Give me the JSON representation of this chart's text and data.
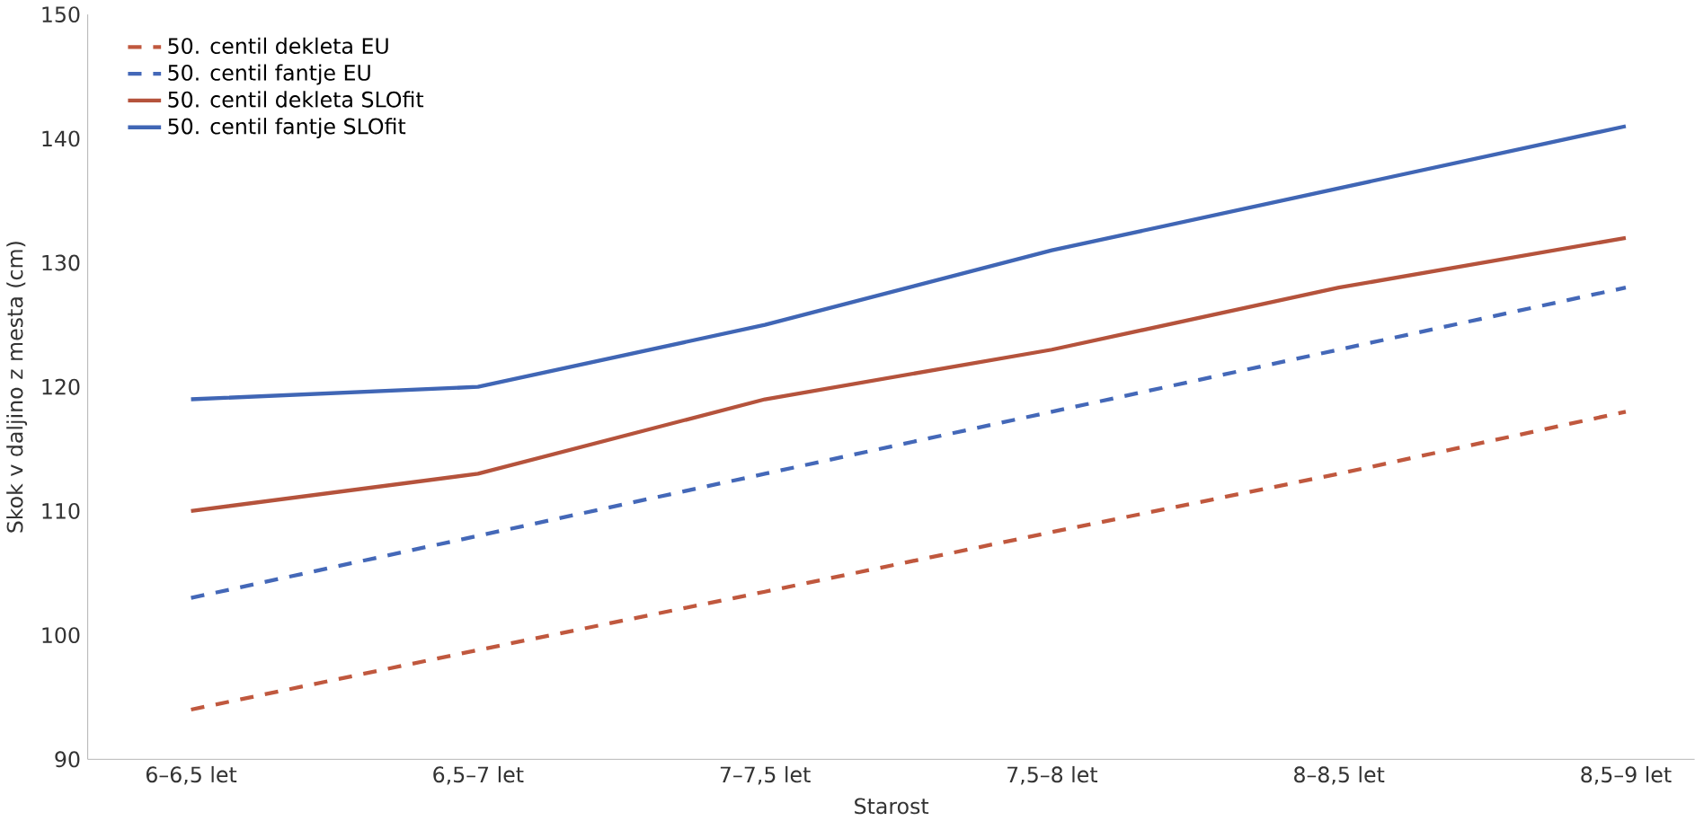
{
  "chart_data": {
    "type": "line",
    "xlabel": "Starost",
    "ylabel": "Skok v daljino z mesta (cm)",
    "categories": [
      "6–6,5 let",
      "6,5–7 let",
      "7–7,5 let",
      "7,5–8 let",
      "8–8,5 let",
      "8,5–9 let"
    ],
    "series": [
      {
        "name": "50. centil dekleta EU",
        "color": "#c0583e",
        "line_style": "dashed",
        "values": [
          94,
          98.8,
          103.5,
          108.3,
          113,
          118
        ]
      },
      {
        "name": "50. centil fantje EU",
        "color": "#4468b8",
        "line_style": "dashed",
        "values": [
          103,
          108,
          113,
          118,
          123,
          128
        ]
      },
      {
        "name": "50. centil dekleta SLOfit",
        "color": "#b5533c",
        "line_style": "solid",
        "values": [
          110,
          113,
          119,
          123,
          128,
          132
        ]
      },
      {
        "name": "50. centil fantje SLOfit",
        "color": "#4066b5",
        "line_style": "solid",
        "values": [
          119,
          120,
          125,
          131,
          136,
          141
        ]
      }
    ],
    "ylim": [
      90,
      150
    ],
    "yticks": [
      90,
      100,
      110,
      120,
      130,
      140,
      150
    ],
    "grid": false,
    "legend": "top left",
    "marker": "none"
  }
}
